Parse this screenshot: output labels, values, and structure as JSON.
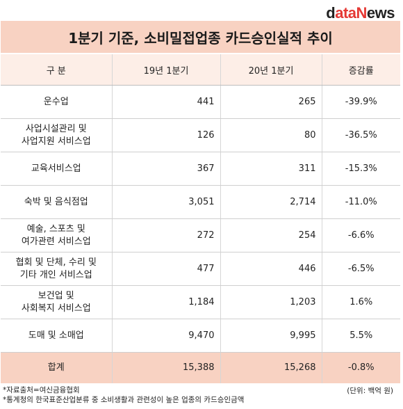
{
  "logo": {
    "d": "d",
    "ata": "ata",
    "n": "N",
    "ews": "ews"
  },
  "title": "1분기 기준, 소비밀접업종 카드승인실적 추이",
  "headers": [
    "구  분",
    "19년 1분기",
    "20년 1분기",
    "증감률"
  ],
  "rows": [
    {
      "name1": "운수업",
      "name2": "",
      "v19": "441",
      "v20": "265",
      "pct": "-39.9%"
    },
    {
      "name1": "사업시설관리 및",
      "name2": "사업지원 서비스업",
      "v19": "126",
      "v20": "80",
      "pct": "-36.5%"
    },
    {
      "name1": "교육서비스업",
      "name2": "",
      "v19": "367",
      "v20": "311",
      "pct": "-15.3%"
    },
    {
      "name1": "숙박 및 음식점업",
      "name2": "",
      "v19": "3,051",
      "v20": "2,714",
      "pct": "-11.0%"
    },
    {
      "name1": "예술, 스포츠 및",
      "name2": "여가관련 서비스업",
      "v19": "272",
      "v20": "254",
      "pct": "-6.6%"
    },
    {
      "name1": "협회 및 단체, 수리 및",
      "name2": "기타 개인 서비스업",
      "v19": "477",
      "v20": "446",
      "pct": "-6.5%"
    },
    {
      "name1": "보건업 및",
      "name2": "사회복지 서비스업",
      "v19": "1,184",
      "v20": "1,203",
      "pct": "1.6%"
    },
    {
      "name1": "도매 및 소매업",
      "name2": "",
      "v19": "9,470",
      "v20": "9,995",
      "pct": "5.5%"
    }
  ],
  "total": {
    "name": "합계",
    "v19": "15,388",
    "v20": "15,268",
    "pct": "-0.8%"
  },
  "footer": {
    "source": "*자료출처=여신금융협회",
    "note": "*통계청의 한국표준산업분류 중 소비생활과 관련성이 높은 업종의 카드승인금액",
    "unit": "(단위: 백억 원)"
  }
}
